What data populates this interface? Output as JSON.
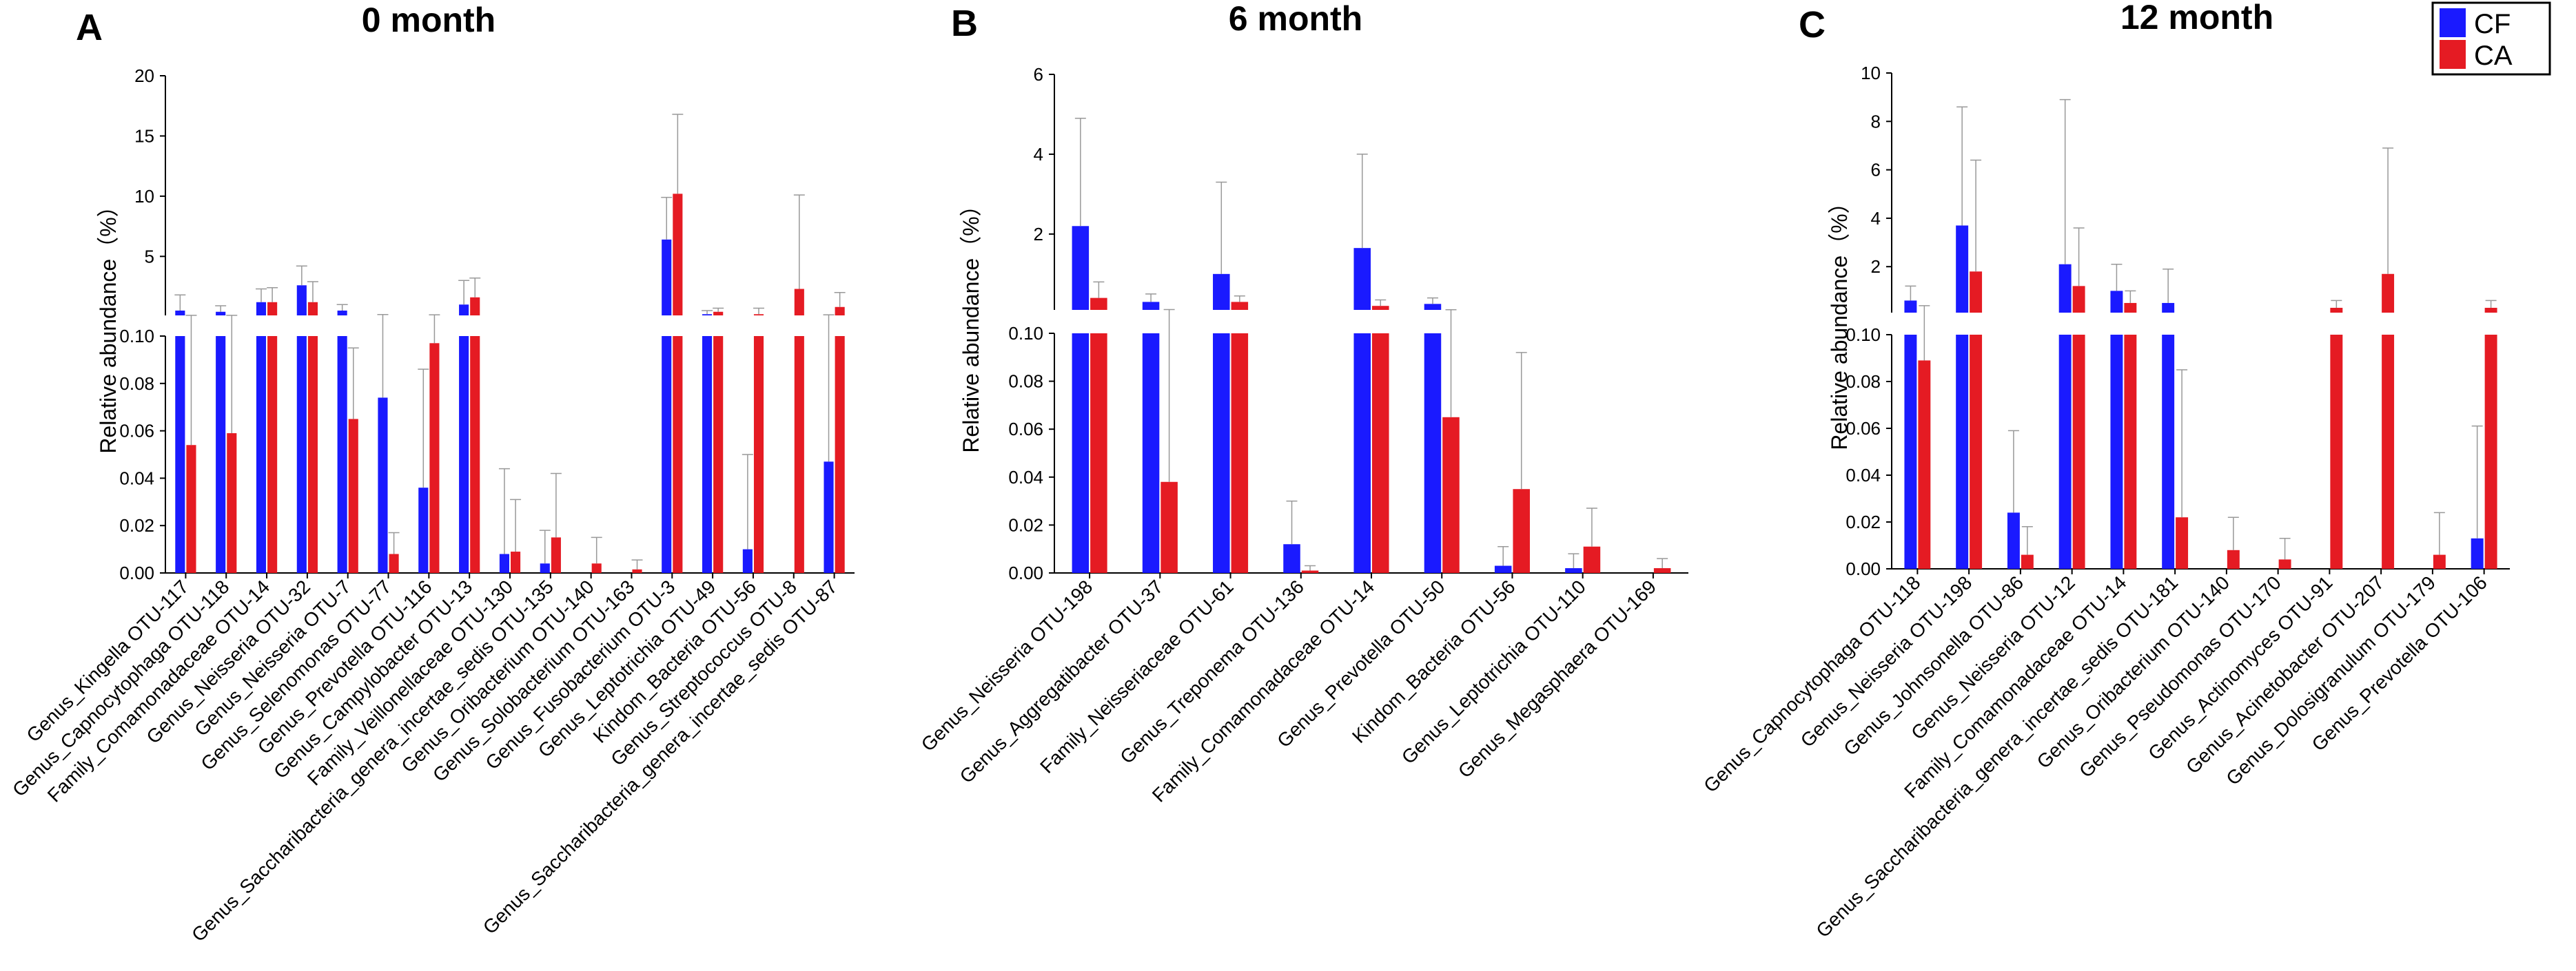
{
  "colors": {
    "CF": "#1a1aff",
    "CA": "#e51b23"
  },
  "legend": [
    {
      "name": "CF",
      "color": "#1a1aff"
    },
    {
      "name": "CA",
      "color": "#e51b23"
    }
  ],
  "chart_data": [
    {
      "type": "bar",
      "panel_label": "A",
      "title": "0 month",
      "ylabel": "Relative abundance（%）",
      "y_split": {
        "lower_range": [
          0,
          0.1
        ],
        "lower_ticks": [
          "0.00",
          "0.02",
          "0.04",
          "0.06",
          "0.08",
          "0.10"
        ],
        "upper_range": [
          0.1,
          20
        ],
        "upper_ticks": [
          "5",
          "10",
          "15",
          "20"
        ]
      },
      "categories": [
        "Genus_Kingella OTU-117",
        "Genus_Capnocytophaga OTU-118",
        "Family_Comamonadaceae OTU-14",
        "Genus_Neisseria OTU-32",
        "Genus_Neisseria OTU-7",
        "Genus_Selenomonas OTU-77",
        "Genus_Prevotella OTU-116",
        "Genus_Campylobacter OTU-13",
        "Family_Veillonellaceae OTU-130",
        "Genus_Saccharibacteria_genera_incertae_sedis OTU-135",
        "Genus_Oribacterium OTU-140",
        "Genus_Solobacterium OTU-163",
        "Genus_Fusobacterium OTU-3",
        "Genus_Leptotrichia OTU-49",
        "Kindom_Bacteria OTU-56",
        "Genus_Streptococcus OTU-8",
        "Genus_Saccharibacteria_genera_incertae_sedis OTU-87"
      ],
      "series": [
        {
          "name": "CF",
          "values": [
            0.5,
            0.4,
            1.2,
            2.6,
            0.5,
            0.074,
            0.036,
            1.0,
            0.008,
            0.004,
            0,
            0,
            6.4,
            0.2,
            0.01,
            0,
            0.047
          ],
          "errors": [
            1.3,
            0.5,
            1.1,
            1.6,
            0.5,
            0.1,
            0.05,
            2.0,
            0.036,
            0.014,
            0,
            0,
            3.5,
            0.3,
            0.04,
            0,
            0.1
          ]
        },
        {
          "name": "CA",
          "values": [
            0.054,
            0.059,
            1.2,
            1.2,
            0.065,
            0.008,
            0.097,
            1.6,
            0.009,
            0.015,
            0.004,
            0.0015,
            10.2,
            0.4,
            0.2,
            2.3,
            0.8
          ],
          "errors": [
            0.05,
            0.05,
            1.2,
            1.7,
            0.03,
            0.009,
            0.05,
            1.6,
            0.022,
            0.027,
            0.011,
            0.004,
            6.6,
            0.3,
            0.5,
            7.8,
            1.2
          ]
        }
      ]
    },
    {
      "type": "bar",
      "panel_label": "B",
      "title": "6 month",
      "ylabel": "Relative abundance（%）",
      "y_split": {
        "lower_range": [
          0,
          0.1
        ],
        "lower_ticks": [
          "0.00",
          "0.02",
          "0.04",
          "0.06",
          "0.08",
          "0.10"
        ],
        "upper_range": [
          0.1,
          6
        ],
        "upper_ticks": [
          "2",
          "4",
          "6"
        ]
      },
      "categories": [
        "Genus_Neisseria OTU-198",
        "Genus_Aggregatibacter OTU-37",
        "Family_Neisseriaceae OTU-61",
        "Genus_Treponema OTU-136",
        "Family_Comamonadaceae OTU-14",
        "Genus_Prevotella OTU-50",
        "Kindom_Bacteria OTU-56",
        "Genus_Leptotrichia OTU-110",
        "Genus_Megasphaera OTU-169"
      ],
      "series": [
        {
          "name": "CF",
          "values": [
            2.2,
            0.3,
            1.0,
            0.012,
            1.65,
            0.25,
            0.003,
            0.002,
            0
          ],
          "errors": [
            2.7,
            0.2,
            2.3,
            0.018,
            2.35,
            0.15,
            0.008,
            0.006,
            0
          ]
        },
        {
          "name": "CA",
          "values": [
            0.4,
            0.038,
            0.3,
            0.001,
            0.2,
            0.065,
            0.035,
            0.011,
            0.002
          ],
          "errors": [
            0.4,
            0.07,
            0.15,
            0.002,
            0.15,
            0.04,
            0.057,
            0.016,
            0.004
          ]
        }
      ]
    },
    {
      "type": "bar",
      "panel_label": "C",
      "title": "12 month",
      "ylabel": "Relative abundance（%）",
      "y_split": {
        "lower_range": [
          0,
          0.1
        ],
        "lower_ticks": [
          "0.00",
          "0.02",
          "0.04",
          "0.06",
          "0.08",
          "0.10"
        ],
        "upper_range": [
          0.1,
          10
        ],
        "upper_ticks": [
          "2",
          "4",
          "6",
          "8",
          "10"
        ]
      },
      "categories": [
        "Genus_Capnocytophaga OTU-118",
        "Genus_Neisseria OTU-198",
        "Genus_Johnsonella OTU-86",
        "Genus_Neisseria OTU-12",
        "Family_Comamonadaceae OTU-14",
        "Genus_Saccharibacteria_genera_incertae_sedis OTU-181",
        "Genus_Oribacterium OTU-140",
        "Genus_Pseudomonas OTU-170",
        "Genus_Actinomyces OTU-91",
        "Genus_Acinetobacter OTU-207",
        "Genus_Dolosigranulum OTU-179",
        "Genus_Prevotella OTU-106"
      ],
      "series": [
        {
          "name": "CF",
          "values": [
            0.6,
            3.7,
            0.024,
            2.1,
            1.0,
            0.5,
            0,
            0,
            0,
            0,
            0,
            0.013
          ],
          "errors": [
            0.6,
            4.9,
            0.035,
            6.8,
            1.1,
            1.4,
            0,
            0,
            0,
            0,
            0,
            0.048
          ]
        },
        {
          "name": "CA",
          "values": [
            0.089,
            1.8,
            0.006,
            1.2,
            0.5,
            0.022,
            0.008,
            0.004,
            0.3,
            1.7,
            0.006,
            0.3
          ],
          "errors": [
            0.3,
            4.6,
            0.012,
            2.4,
            0.5,
            0.063,
            0.014,
            0.009,
            0.3,
            5.2,
            0.018,
            0.3
          ]
        }
      ]
    }
  ]
}
